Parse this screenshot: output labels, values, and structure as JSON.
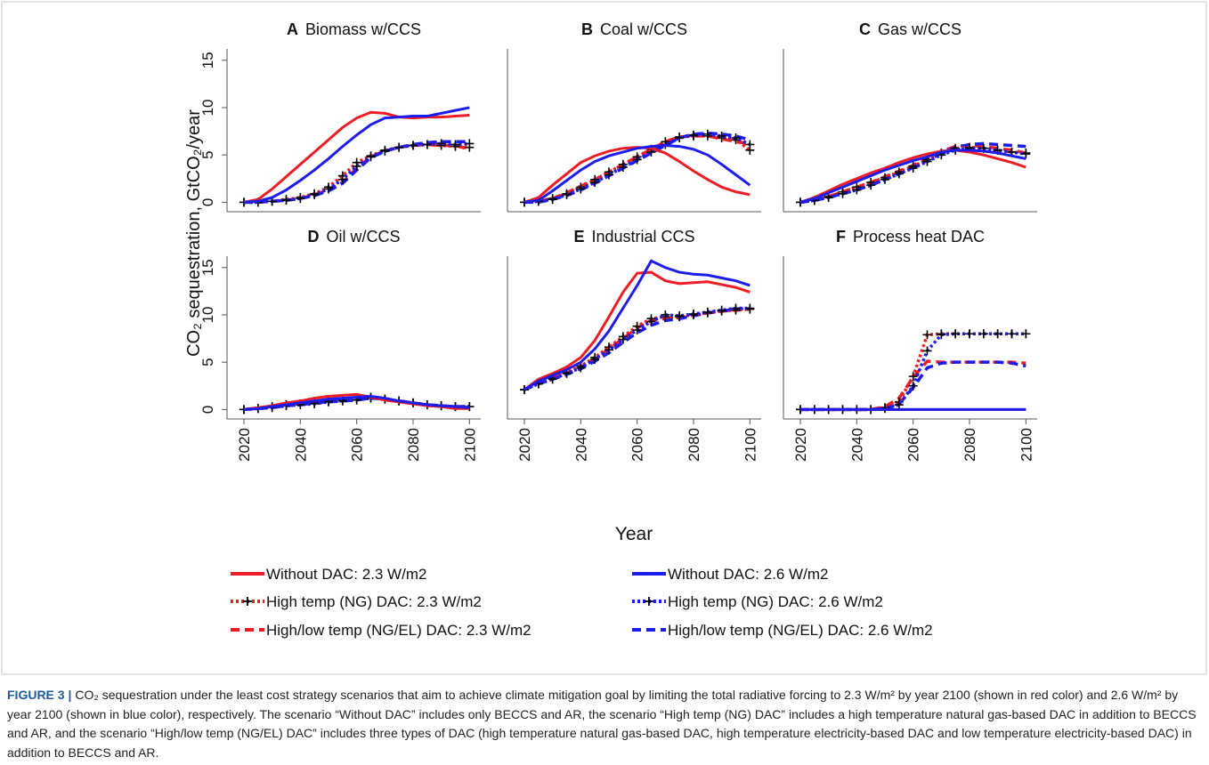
{
  "chart_data": [
    {
      "type": "line",
      "letter": "A",
      "title": "Biomass w/CCS",
      "x": [
        2020,
        2025,
        2030,
        2035,
        2040,
        2045,
        2050,
        2055,
        2060,
        2065,
        2070,
        2075,
        2080,
        2085,
        2090,
        2095,
        2100
      ],
      "xlim": [
        2014,
        2104
      ],
      "ylim": [
        -1,
        16.2
      ],
      "yticks": [
        0,
        5,
        10,
        15
      ],
      "series": [
        {
          "values": [
            0,
            0.3,
            1.4,
            2.7,
            4.0,
            5.3,
            6.6,
            7.9,
            8.9,
            9.5,
            9.4,
            9.0,
            8.9,
            9.0,
            9.0,
            9.1,
            9.2
          ]
        },
        {
          "values": [
            0,
            0.1,
            0.5,
            1.3,
            2.3,
            3.4,
            4.6,
            5.9,
            7.1,
            8.2,
            8.9,
            9.0,
            9.1,
            9.1,
            9.4,
            9.7,
            10.0
          ]
        },
        {
          "values": [
            0,
            0,
            0.1,
            0.3,
            0.5,
            0.9,
            1.6,
            2.8,
            4.2,
            4.9,
            5.5,
            5.8,
            6.0,
            6.1,
            6.0,
            5.9,
            5.8
          ]
        },
        {
          "values": [
            0,
            0,
            0.1,
            0.2,
            0.4,
            0.8,
            1.4,
            2.4,
            3.8,
            4.8,
            5.4,
            5.8,
            6.0,
            6.1,
            6.2,
            6.1,
            6.2
          ]
        },
        {
          "values": [
            0,
            0,
            0.1,
            0.2,
            0.4,
            0.8,
            1.3,
            2.1,
            3.6,
            4.8,
            5.4,
            5.8,
            6.0,
            6.1,
            6.0,
            6.0,
            5.6
          ]
        },
        {
          "values": [
            0,
            0,
            0.1,
            0.2,
            0.4,
            0.7,
            1.2,
            2.0,
            3.4,
            4.7,
            5.4,
            5.8,
            6.1,
            6.3,
            6.4,
            6.4,
            6.4
          ]
        }
      ]
    },
    {
      "type": "line",
      "letter": "B",
      "title": "Coal w/CCS",
      "x": [
        2020,
        2025,
        2030,
        2035,
        2040,
        2045,
        2050,
        2055,
        2060,
        2065,
        2070,
        2075,
        2080,
        2085,
        2090,
        2095,
        2100
      ],
      "xlim": [
        2014,
        2104
      ],
      "ylim": [
        -1,
        16.2
      ],
      "series": [
        {
          "values": [
            0,
            0.5,
            1.8,
            3.0,
            4.2,
            4.9,
            5.4,
            5.7,
            5.8,
            5.7,
            5.2,
            4.3,
            3.3,
            2.4,
            1.6,
            1.1,
            0.8
          ]
        },
        {
          "values": [
            0,
            0.2,
            1.2,
            2.3,
            3.4,
            4.3,
            4.9,
            5.3,
            5.7,
            5.9,
            6.0,
            5.9,
            5.6,
            5.0,
            4.0,
            2.9,
            1.8
          ]
        },
        {
          "values": [
            0,
            0.1,
            0.4,
            0.9,
            1.6,
            2.4,
            3.2,
            4.0,
            4.8,
            5.6,
            6.4,
            6.9,
            7.0,
            7.0,
            6.8,
            6.6,
            5.5
          ]
        },
        {
          "values": [
            0,
            0.1,
            0.3,
            0.8,
            1.4,
            2.1,
            2.9,
            3.7,
            4.5,
            5.3,
            6.1,
            6.8,
            7.1,
            7.2,
            7.0,
            6.8,
            6.1
          ]
        },
        {
          "values": [
            0,
            0.1,
            0.4,
            1.0,
            1.7,
            2.4,
            3.2,
            4.0,
            4.8,
            5.6,
            6.4,
            6.9,
            7.0,
            7.0,
            6.7,
            6.4,
            6.2
          ]
        },
        {
          "values": [
            0,
            0,
            0.3,
            0.7,
            1.3,
            2.0,
            2.8,
            3.6,
            4.4,
            5.2,
            6.0,
            6.8,
            7.2,
            7.3,
            7.2,
            7.0,
            6.6
          ]
        }
      ]
    },
    {
      "type": "line",
      "letter": "C",
      "title": "Gas w/CCS",
      "x": [
        2020,
        2025,
        2030,
        2035,
        2040,
        2045,
        2050,
        2055,
        2060,
        2065,
        2070,
        2075,
        2080,
        2085,
        2090,
        2095,
        2100
      ],
      "xlim": [
        2014,
        2104
      ],
      "ylim": [
        -1,
        16.2
      ],
      "series": [
        {
          "values": [
            0,
            0.5,
            1.2,
            1.9,
            2.5,
            3.1,
            3.6,
            4.2,
            4.7,
            5.1,
            5.4,
            5.5,
            5.3,
            5.0,
            4.6,
            4.2,
            3.7
          ]
        },
        {
          "values": [
            0,
            0.4,
            1.0,
            1.6,
            2.2,
            2.8,
            3.4,
            3.9,
            4.4,
            4.8,
            5.3,
            5.5,
            5.5,
            5.4,
            5.2,
            4.9,
            4.6
          ]
        },
        {
          "values": [
            0,
            0.2,
            0.6,
            1.1,
            1.6,
            2.1,
            2.6,
            3.2,
            3.8,
            4.5,
            5.2,
            5.7,
            5.8,
            5.7,
            5.5,
            5.3,
            5.2
          ]
        },
        {
          "values": [
            0,
            0.2,
            0.5,
            0.9,
            1.3,
            1.8,
            2.4,
            3.0,
            3.6,
            4.3,
            5.0,
            5.5,
            5.7,
            5.7,
            5.5,
            5.3,
            5.1
          ]
        },
        {
          "values": [
            0,
            0.2,
            0.6,
            1.1,
            1.6,
            2.1,
            2.7,
            3.3,
            3.9,
            4.7,
            5.4,
            5.9,
            6.0,
            5.9,
            5.7,
            5.5,
            5.2
          ]
        },
        {
          "values": [
            0,
            0.2,
            0.5,
            0.9,
            1.3,
            1.8,
            2.4,
            3.0,
            3.7,
            4.4,
            5.2,
            5.8,
            6.1,
            6.2,
            6.1,
            6.0,
            5.9
          ]
        }
      ]
    },
    {
      "type": "line",
      "letter": "D",
      "title": "Oil w/CCS",
      "x": [
        2020,
        2025,
        2030,
        2035,
        2040,
        2045,
        2050,
        2055,
        2060,
        2065,
        2070,
        2075,
        2080,
        2085,
        2090,
        2095,
        2100
      ],
      "xlim": [
        2014,
        2104
      ],
      "ylim": [
        -1,
        16.2
      ],
      "yticks": [
        0,
        5,
        10,
        15
      ],
      "xticks": [
        2020,
        2040,
        2060,
        2080,
        2100
      ],
      "series": [
        {
          "values": [
            0,
            0.2,
            0.4,
            0.7,
            0.9,
            1.2,
            1.4,
            1.5,
            1.6,
            1.3,
            1.0,
            0.8,
            0.6,
            0.4,
            0.3,
            0.1,
            0.1
          ]
        },
        {
          "values": [
            0,
            0.1,
            0.3,
            0.5,
            0.7,
            0.9,
            1.1,
            1.2,
            1.3,
            1.4,
            1.2,
            0.9,
            0.7,
            0.5,
            0.4,
            0.3,
            0.2
          ]
        },
        {
          "values": [
            0,
            0.1,
            0.3,
            0.5,
            0.6,
            0.7,
            0.9,
            1.0,
            1.2,
            1.3,
            1.1,
            0.9,
            0.7,
            0.5,
            0.4,
            0.3,
            0.3
          ]
        },
        {
          "values": [
            0,
            0.1,
            0.2,
            0.4,
            0.5,
            0.6,
            0.8,
            0.9,
            1.0,
            1.2,
            1.1,
            0.9,
            0.7,
            0.5,
            0.4,
            0.3,
            0.3
          ]
        },
        {
          "values": [
            0,
            0.1,
            0.3,
            0.5,
            0.6,
            0.8,
            1.0,
            1.1,
            1.2,
            1.3,
            1.1,
            0.9,
            0.7,
            0.5,
            0.4,
            0.3,
            0.3
          ]
        },
        {
          "values": [
            0,
            0.1,
            0.2,
            0.4,
            0.5,
            0.7,
            0.8,
            0.9,
            1.0,
            1.2,
            1.1,
            0.9,
            0.7,
            0.5,
            0.4,
            0.3,
            0.3
          ]
        }
      ]
    },
    {
      "type": "line",
      "letter": "E",
      "title": "Industrial CCS",
      "x": [
        2020,
        2025,
        2030,
        2035,
        2040,
        2045,
        2050,
        2055,
        2060,
        2065,
        2070,
        2075,
        2080,
        2085,
        2090,
        2095,
        2100
      ],
      "xlim": [
        2014,
        2104
      ],
      "ylim": [
        -1,
        16.2
      ],
      "xticks": [
        2020,
        2040,
        2060,
        2080,
        2100
      ],
      "series": [
        {
          "values": [
            2.1,
            3.2,
            3.8,
            4.5,
            5.5,
            7.3,
            9.8,
            12.4,
            14.4,
            14.5,
            13.6,
            13.3,
            13.4,
            13.5,
            13.2,
            12.9,
            12.4
          ]
        },
        {
          "values": [
            2.1,
            3.0,
            3.6,
            4.2,
            5.0,
            6.4,
            8.3,
            10.7,
            13.1,
            15.7,
            15.0,
            14.5,
            14.3,
            14.2,
            13.9,
            13.6,
            13.1
          ]
        },
        {
          "values": [
            2.1,
            2.8,
            3.3,
            3.9,
            4.6,
            5.5,
            6.6,
            7.7,
            8.8,
            9.6,
            9.8,
            9.8,
            10.0,
            10.2,
            10.4,
            10.5,
            10.6
          ]
        },
        {
          "values": [
            2.1,
            2.7,
            3.2,
            3.8,
            4.4,
            5.3,
            6.3,
            7.4,
            8.4,
            9.3,
            10.0,
            9.9,
            10.1,
            10.3,
            10.5,
            10.7,
            10.7
          ]
        },
        {
          "values": [
            2.1,
            2.8,
            3.3,
            3.8,
            4.5,
            5.3,
            6.4,
            7.5,
            8.6,
            9.4,
            9.6,
            9.7,
            10.0,
            10.2,
            10.4,
            10.5,
            10.6
          ]
        },
        {
          "values": [
            2.1,
            2.7,
            3.2,
            3.7,
            4.3,
            5.1,
            6.0,
            7.1,
            8.1,
            8.9,
            9.4,
            9.6,
            9.9,
            10.2,
            10.4,
            10.6,
            10.7
          ]
        }
      ]
    },
    {
      "type": "line",
      "letter": "F",
      "title": "Process heat DAC",
      "x": [
        2020,
        2025,
        2030,
        2035,
        2040,
        2045,
        2050,
        2055,
        2060,
        2065,
        2070,
        2075,
        2080,
        2085,
        2090,
        2095,
        2100
      ],
      "xlim": [
        2014,
        2104
      ],
      "ylim": [
        -1,
        16.2
      ],
      "xticks": [
        2020,
        2040,
        2060,
        2080,
        2100
      ],
      "series": [
        {
          "values": [
            0,
            0,
            0,
            0,
            0,
            0,
            0,
            0,
            0,
            0,
            0,
            0,
            0,
            0,
            0,
            0,
            0
          ]
        },
        {
          "values": [
            0,
            0,
            0,
            0,
            0,
            0,
            0,
            0,
            0,
            0,
            0,
            0,
            0,
            0,
            0,
            0,
            0
          ]
        },
        {
          "values": [
            0,
            0,
            0,
            0,
            0,
            0,
            0.2,
            0.8,
            3.5,
            7.9,
            8.0,
            8.0,
            8.0,
            8.0,
            8.0,
            8.0,
            8.0
          ]
        },
        {
          "values": [
            0,
            0,
            0,
            0,
            0,
            0,
            0.1,
            0.5,
            2.5,
            6.2,
            7.9,
            8.0,
            8.0,
            8.0,
            8.0,
            8.0,
            8.0
          ]
        },
        {
          "values": [
            0,
            0,
            0,
            0,
            0,
            0,
            0.3,
            1.2,
            3.4,
            5.1,
            5.0,
            5.0,
            5.0,
            5.0,
            5.0,
            5.0,
            4.9
          ]
        },
        {
          "values": [
            0,
            0,
            0,
            0,
            0,
            0,
            0.1,
            0.6,
            2.3,
            4.4,
            4.9,
            5.0,
            5.0,
            5.0,
            5.0,
            4.9,
            4.6
          ]
        }
      ]
    }
  ],
  "legend": [
    {
      "name": "Without DAC: 2.3 W/m2",
      "color": "#ee1c25",
      "style": "solid"
    },
    {
      "name": "Without DAC: 2.6 W/m2",
      "color": "#1c1cee",
      "style": "solid"
    },
    {
      "name": "High temp (NG) DAC: 2.3 W/m2",
      "color": "#ee1c25",
      "style": "dotted-plus"
    },
    {
      "name": "High temp (NG) DAC: 2.6 W/m2",
      "color": "#1c1cee",
      "style": "dotted-plus"
    },
    {
      "name": "High/low temp (NG/EL) DAC: 2.3 W/m2",
      "color": "#ee1c25",
      "style": "dashed"
    },
    {
      "name": "High/low temp (NG/EL) DAC: 2.6 W/m2",
      "color": "#1c1cee",
      "style": "dashed"
    }
  ],
  "xlabel": "Year",
  "ylabel": "CO₂ sequestration, GtCO₂/year",
  "caption": {
    "label": "FIGURE 3 |",
    "text": "CO₂ sequestration under the least cost strategy scenarios that aim to achieve climate mitigation goal by limiting the total radiative forcing to 2.3 W/m² by year 2100 (shown in red color) and 2.6 W/m² by year 2100 (shown in blue color), respectively. The scenario “Without DAC” includes only BECCS and AR, the scenario “High temp (NG) DAC” includes a high temperature natural gas-based DAC in addition to BECCS and AR, and the scenario “High/low temp (NG/EL) DAC” includes three types of DAC (high temperature natural gas-based DAC, high temperature electricity-based DAC and low temperature electricity-based DAC) in addition to BECCS and AR."
  }
}
